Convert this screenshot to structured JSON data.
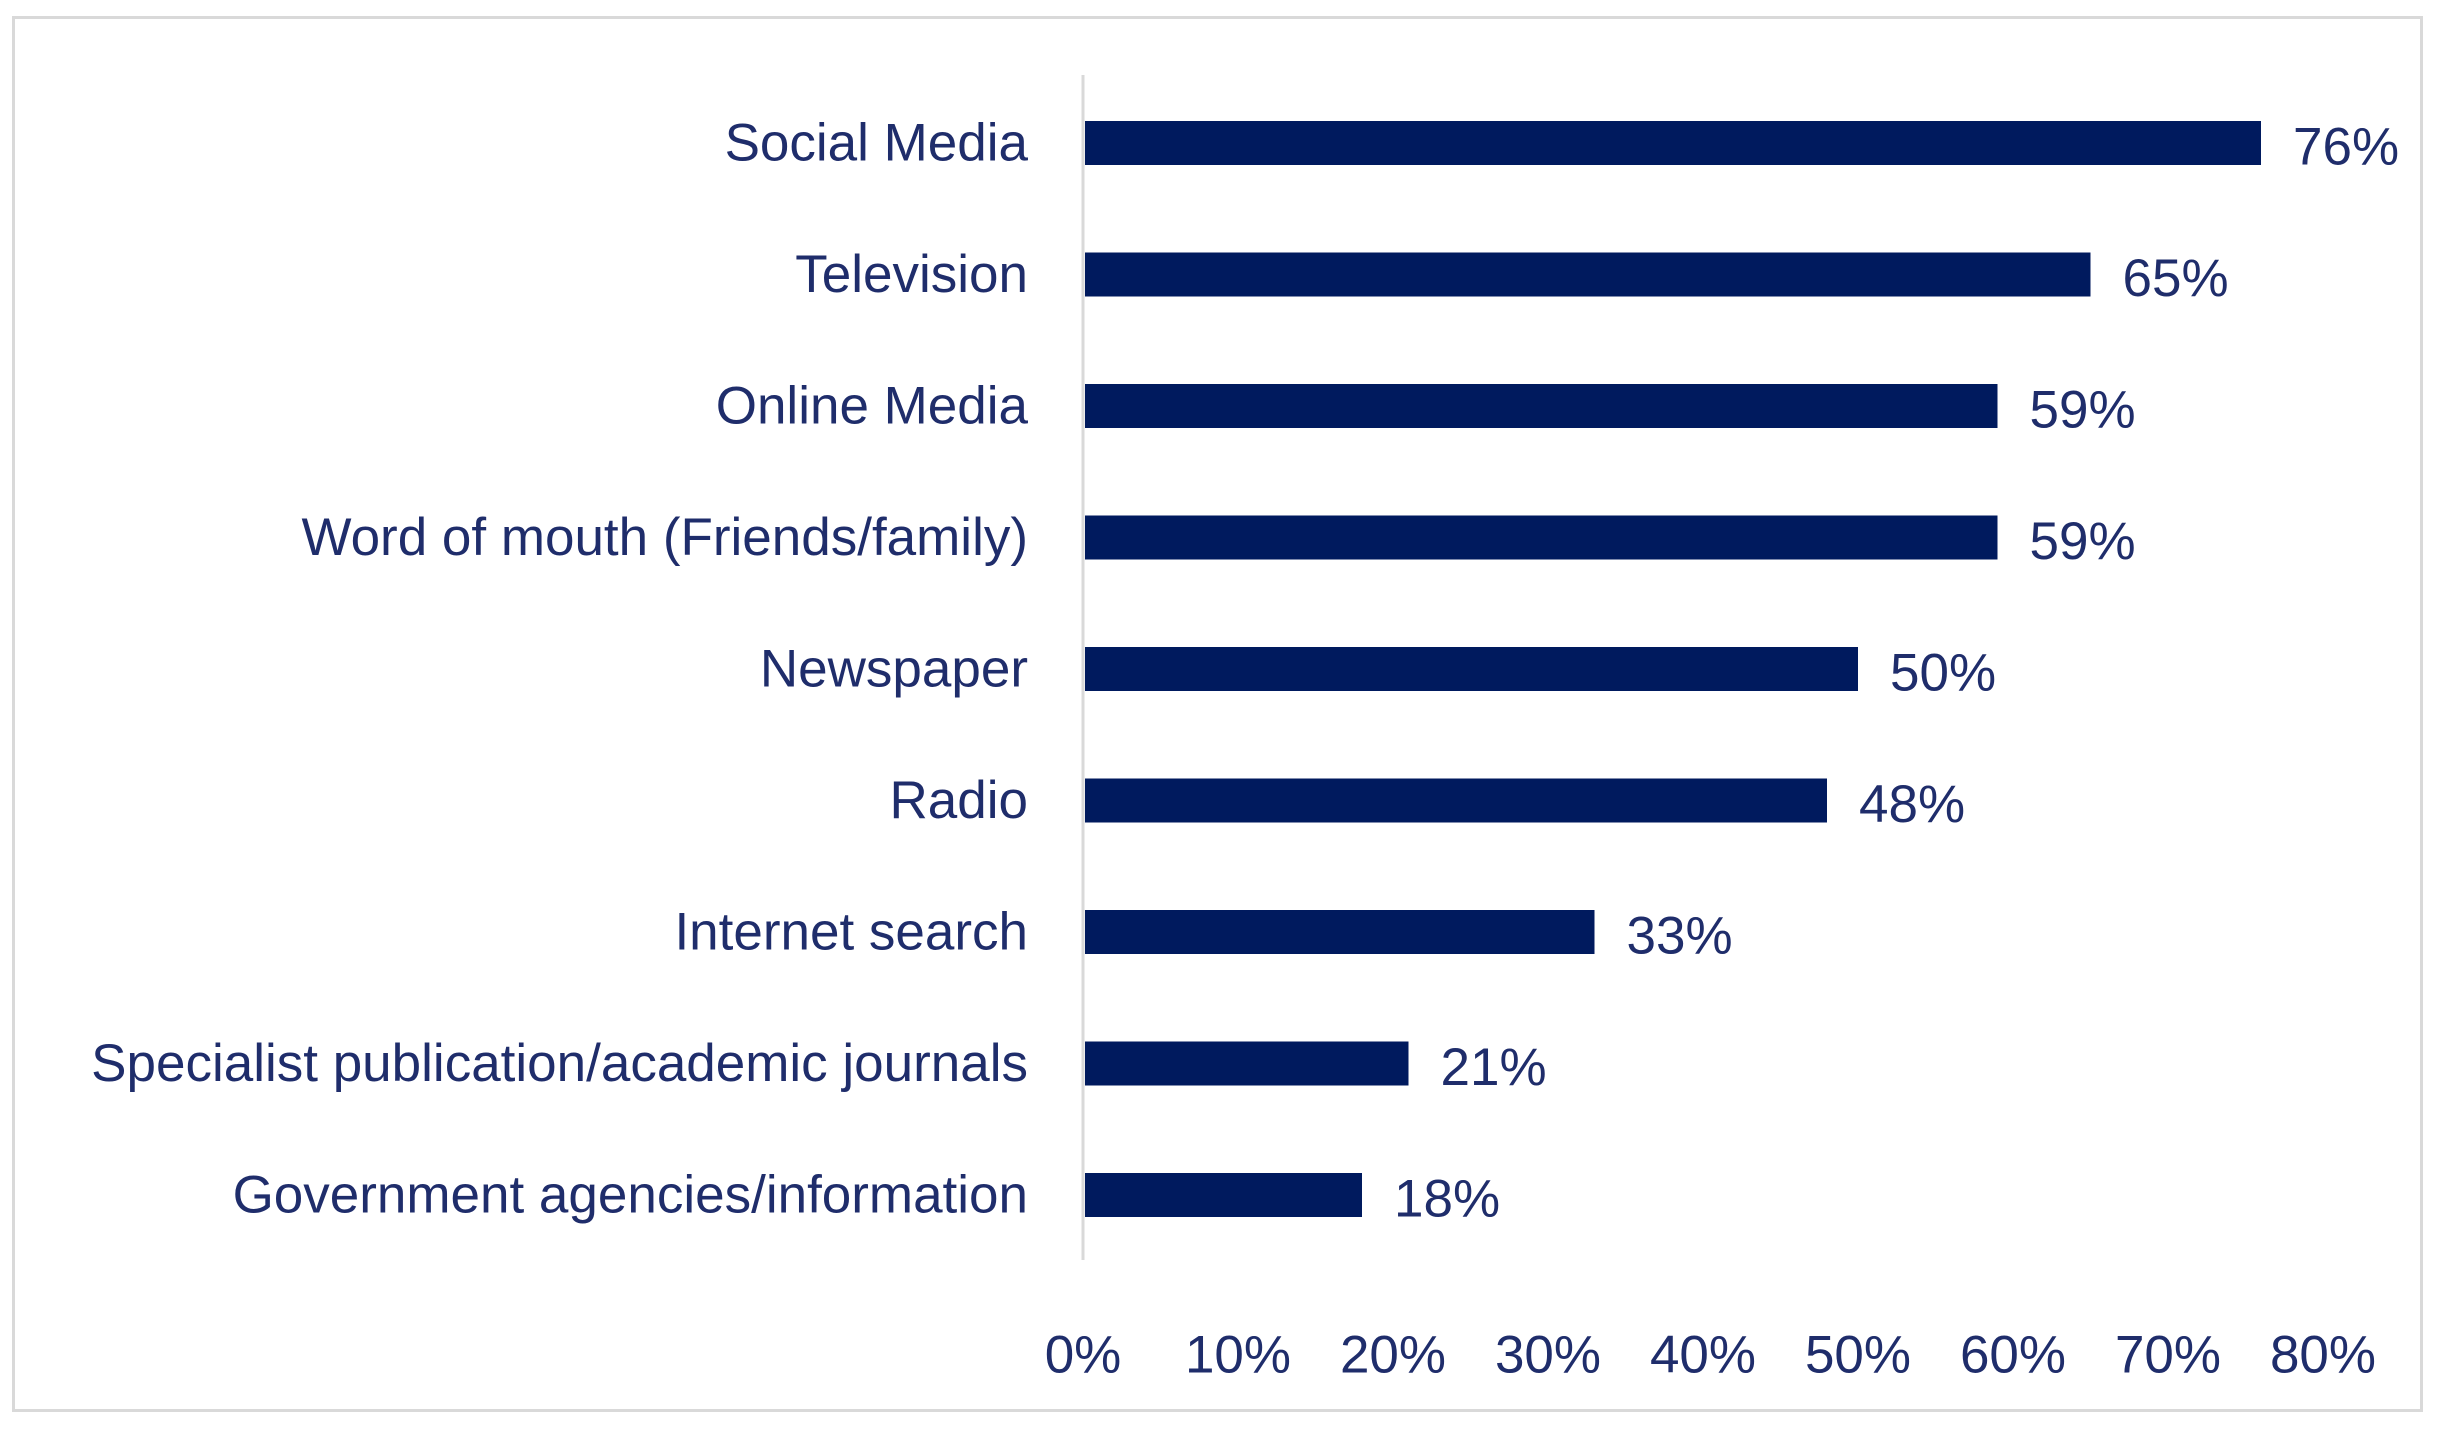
{
  "chart_data": {
    "type": "bar",
    "orientation": "horizontal",
    "categories": [
      "Social Media",
      "Television",
      "Online Media",
      "Word of mouth (Friends/family)",
      "Newspaper",
      "Radio",
      "Internet search",
      "Specialist publication/academic journals",
      "Government agencies/information"
    ],
    "values": [
      76,
      65,
      59,
      59,
      50,
      48,
      33,
      21,
      18
    ],
    "value_labels": [
      "76%",
      "65%",
      "59%",
      "59%",
      "50%",
      "48%",
      "33%",
      "21%",
      "18%"
    ],
    "xlim": [
      0,
      80
    ],
    "x_ticks": [
      0,
      10,
      20,
      30,
      40,
      50,
      60,
      70,
      80
    ],
    "x_tick_labels": [
      "0%",
      "10%",
      "20%",
      "30%",
      "40%",
      "50%",
      "60%",
      "70%",
      "80%"
    ],
    "grid": false,
    "legend": "none",
    "bar_color": "#001a5e",
    "text_color": "#1f2d6b",
    "axis_color": "#d9d9d9"
  }
}
